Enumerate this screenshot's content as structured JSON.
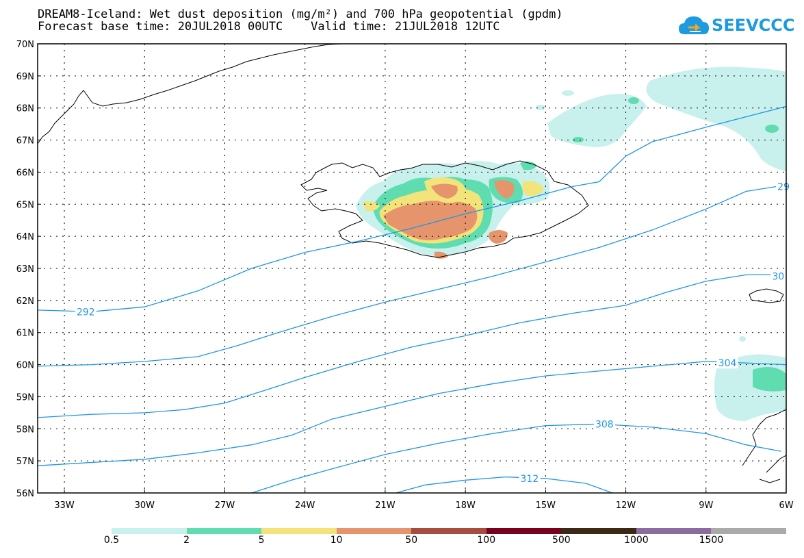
{
  "header": {
    "title_line1": "DREAM8-Iceland: Wet dust deposition (mg/m²) and 700 hPa geopotential (gpdm)",
    "title_line2": "Forecast base time: 20JUL2018 00UTC    Valid time: 21JUL2018 12UTC"
  },
  "logo": {
    "text": "SEEVCCC",
    "icon": "cloud-icon",
    "color": "#1e9be0"
  },
  "map": {
    "lon_range": [
      -34.0,
      -6.0
    ],
    "lat_range": [
      56.0,
      70.0
    ],
    "lat_labels": [
      "70N",
      "69N",
      "68N",
      "67N",
      "66N",
      "65N",
      "64N",
      "63N",
      "62N",
      "61N",
      "60N",
      "59N",
      "58N",
      "57N",
      "56N"
    ],
    "lon_labels": [
      "33W",
      "30W",
      "27W",
      "24W",
      "21W",
      "18W",
      "15W",
      "12W",
      "9W",
      "6W"
    ],
    "contour_color": "#1e96e6",
    "contours": [
      {
        "label": "292",
        "points": [
          [
            -34,
            61.7
          ],
          [
            -32,
            61.65
          ],
          [
            -30,
            61.8
          ],
          [
            -28,
            62.3
          ],
          [
            -26,
            63.0
          ],
          [
            -24,
            63.5
          ],
          [
            -22,
            63.85
          ],
          [
            -20,
            64.25
          ],
          [
            -18,
            64.7
          ],
          [
            -16,
            65.1
          ],
          [
            -14,
            65.55
          ],
          [
            -13,
            65.7
          ],
          [
            -12,
            66.5
          ],
          [
            -11,
            66.95
          ],
          [
            -9,
            67.4
          ],
          [
            -6,
            68.05
          ]
        ]
      },
      {
        "label": "29",
        "points": [
          [
            -34,
            59.95
          ],
          [
            -32,
            60.0
          ],
          [
            -30,
            60.1
          ],
          [
            -28,
            60.25
          ],
          [
            -26.5,
            60.6
          ],
          [
            -25,
            61.0
          ],
          [
            -23,
            61.5
          ],
          [
            -21,
            61.95
          ],
          [
            -19,
            62.35
          ],
          [
            -17,
            62.75
          ],
          [
            -15,
            63.2
          ],
          [
            -13,
            63.65
          ],
          [
            -11,
            64.2
          ],
          [
            -9,
            64.85
          ],
          [
            -7.5,
            65.4
          ],
          [
            -6,
            65.6
          ]
        ]
      },
      {
        "label": "30",
        "points": [
          [
            -34,
            58.35
          ],
          [
            -32,
            58.45
          ],
          [
            -30,
            58.5
          ],
          [
            -28.5,
            58.6
          ],
          [
            -27,
            58.8
          ],
          [
            -25.5,
            59.2
          ],
          [
            -24,
            59.6
          ],
          [
            -22,
            60.1
          ],
          [
            -20,
            60.55
          ],
          [
            -18,
            60.9
          ],
          [
            -16,
            61.3
          ],
          [
            -14,
            61.6
          ],
          [
            -12,
            61.85
          ],
          [
            -10.5,
            62.25
          ],
          [
            -9,
            62.6
          ],
          [
            -7.5,
            62.8
          ],
          [
            -6.5,
            62.8
          ]
        ]
      },
      {
        "label": "304",
        "points": [
          [
            -34,
            56.85
          ],
          [
            -32,
            56.95
          ],
          [
            -30,
            57.05
          ],
          [
            -28,
            57.25
          ],
          [
            -26,
            57.5
          ],
          [
            -24.5,
            57.8
          ],
          [
            -23,
            58.3
          ],
          [
            -21,
            58.7
          ],
          [
            -19,
            59.1
          ],
          [
            -17,
            59.4
          ],
          [
            -15,
            59.65
          ],
          [
            -13,
            59.8
          ],
          [
            -11,
            59.95
          ],
          [
            -9,
            60.1
          ],
          [
            -7.5,
            60.05
          ],
          [
            -6,
            60.0
          ]
        ]
      },
      {
        "label": "308",
        "points": [
          [
            -26,
            56.0
          ],
          [
            -24.5,
            56.4
          ],
          [
            -23,
            56.75
          ],
          [
            -21,
            57.2
          ],
          [
            -19,
            57.55
          ],
          [
            -17,
            57.85
          ],
          [
            -15,
            58.1
          ],
          [
            -13,
            58.15
          ],
          [
            -11,
            58.05
          ],
          [
            -9,
            57.85
          ],
          [
            -7.5,
            57.5
          ],
          [
            -6.2,
            57.3
          ]
        ]
      },
      {
        "label": "312",
        "points": [
          [
            -20.6,
            56.0
          ],
          [
            -19.5,
            56.25
          ],
          [
            -18,
            56.4
          ],
          [
            -16.5,
            56.5
          ],
          [
            -15,
            56.45
          ],
          [
            -13.5,
            56.3
          ],
          [
            -12.5,
            56.0
          ]
        ]
      }
    ]
  },
  "legend": {
    "colors": [
      "#c8f0ec",
      "#5fdcb0",
      "#f2e47a",
      "#e6946c",
      "#a84c40",
      "#7a0020",
      "#3c2814",
      "#8c6ca0",
      "#aaaaaa"
    ],
    "labels": [
      "0.5",
      "2",
      "5",
      "10",
      "50",
      "100",
      "500",
      "1000",
      "1500"
    ]
  }
}
